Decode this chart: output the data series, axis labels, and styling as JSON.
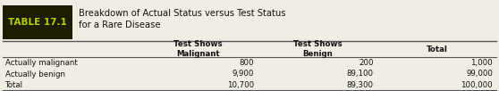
{
  "table_label": "TABLE 17.1",
  "table_title_line1": "Breakdown of Actual Status versus Test Status",
  "table_title_line2": "for a Rare Disease",
  "col_headers": [
    "Test Shows\nMalignant",
    "Test Shows\nBenign",
    "Total"
  ],
  "row_labels": [
    "Actually malignant",
    "Actually benign",
    "Total"
  ],
  "data": [
    [
      "800",
      "200",
      "1,000"
    ],
    [
      "9,900",
      "89,100",
      "99,000"
    ],
    [
      "10,700",
      "89,300",
      "100,000"
    ]
  ],
  "label_bg": "#1c1c00",
  "label_text_color": "#b8cc00",
  "bg_color": "#f0ede4",
  "text_color": "#111111",
  "line_color": "#888888",
  "figsize": [
    5.58,
    1.02
  ],
  "dpi": 100
}
